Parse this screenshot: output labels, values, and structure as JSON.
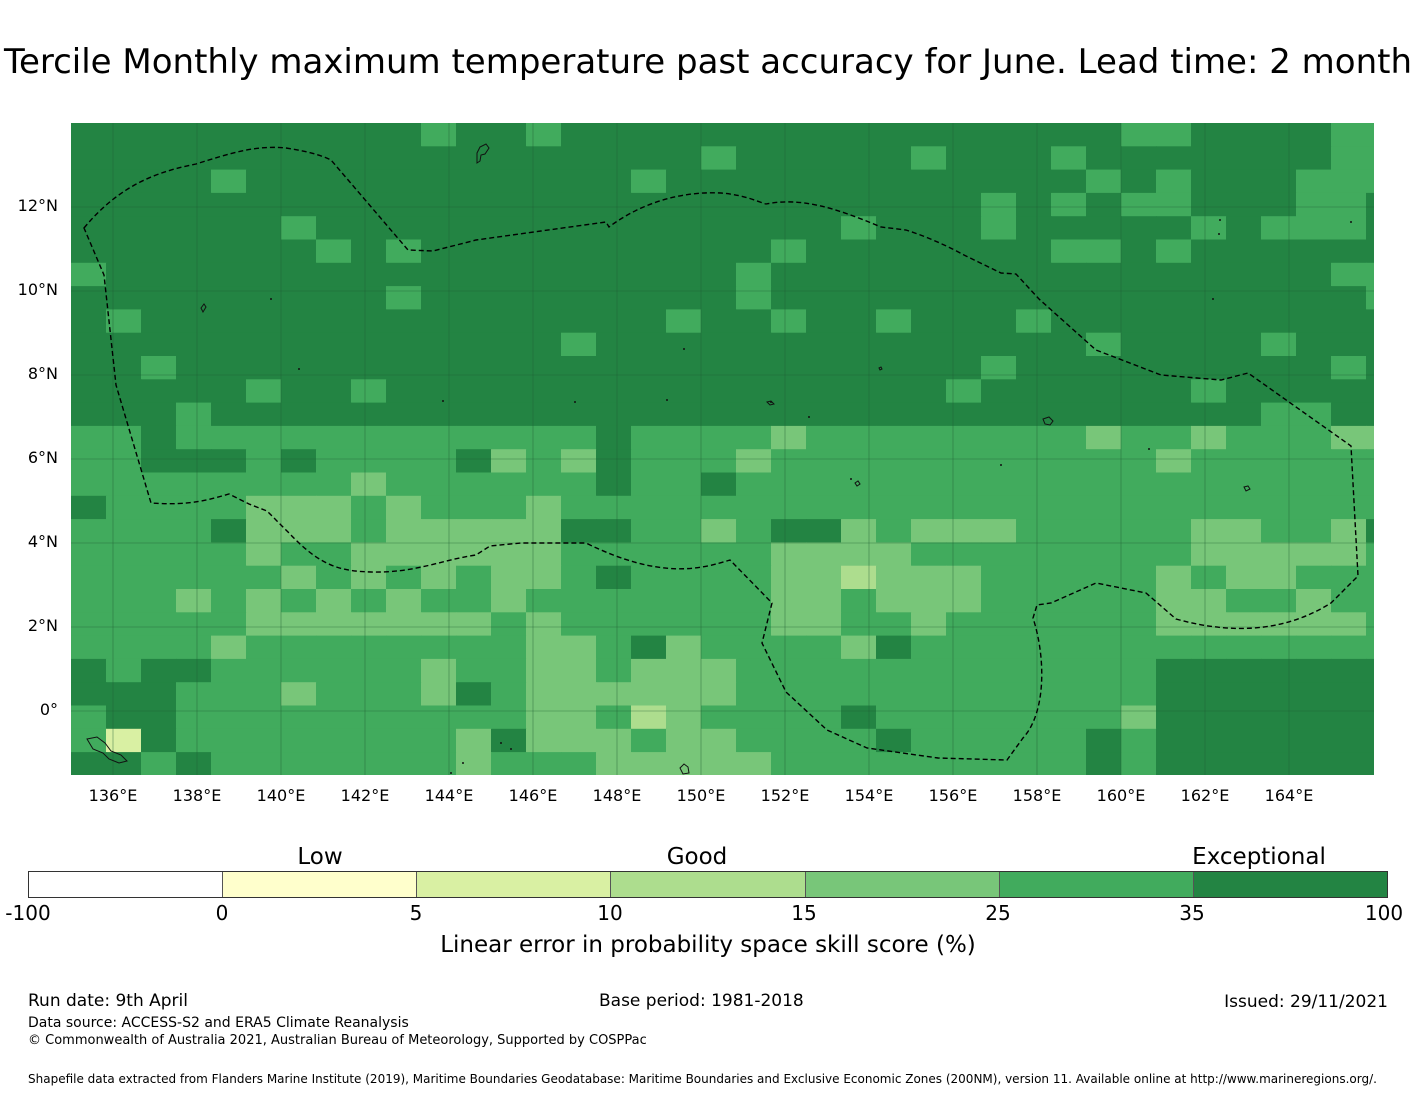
{
  "title": "Tercile Monthly maximum temperature past accuracy for June. Lead time: 2 month",
  "map": {
    "latitude_labels": [
      "12°N",
      "10°N",
      "8°N",
      "6°N",
      "4°N",
      "2°N",
      "0°"
    ],
    "longitude_labels": [
      "136°E",
      "138°E",
      "140°E",
      "142°E",
      "144°E",
      "146°E",
      "148°E",
      "150°E",
      "152°E",
      "154°E",
      "156°E",
      "158°E",
      "160°E",
      "162°E",
      "164°E"
    ],
    "extent": {
      "lon": [
        135,
        166
      ],
      "lat": [
        -1.5,
        14
      ]
    },
    "boundary_style": "dashed black line (EEZ)",
    "gridlines": true
  },
  "legend": {
    "categories": [
      "Low",
      "Good",
      "Exceptional"
    ],
    "tick_labels": [
      "-100",
      "0",
      "5",
      "10",
      "15",
      "25",
      "35",
      "100"
    ],
    "colors": [
      "#ffffff",
      "#ffffcc",
      "#d9f0a3",
      "#addd8e",
      "#78c679",
      "#41ab5d",
      "#238443"
    ],
    "title": "Linear error in probability space skill score (%)"
  },
  "footer": {
    "run_date": "Run date: 9th April",
    "base_period": "Base period: 1981-2018",
    "issued": "Issued: 29/11/2021",
    "data_source": "Data source: ACCESS-S2 and ERA5 Climate Reanalysis",
    "copyright": "© Commonwealth of Australia 2021, Australian Bureau of Meteorology, Supported by COSPPac",
    "shapefile": "Shapefile data extracted from Flanders Marine Institute (2019), Maritime Boundaries Geodatabase: Maritime Boundaries and Exclusive Economic Zones (200NM), version 11. Available online at http://www.marineregions.org/."
  }
}
